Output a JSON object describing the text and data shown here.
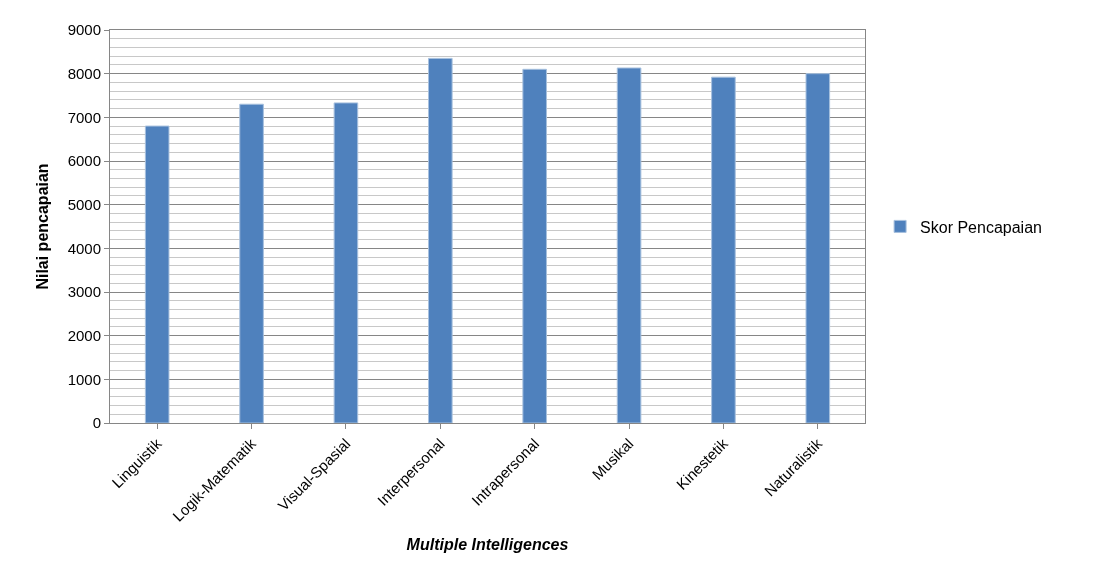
{
  "chart_data": {
    "type": "bar",
    "xlabel": "Multiple Intelligences",
    "ylabel": "Nilai pencapaian",
    "categories": [
      "Linguistik",
      "Logik-Matematik",
      "Visual-Spasial",
      "Interpersonal",
      "Intrapersonal",
      "Musikal",
      "Kinestetik",
      "Naturalistik"
    ],
    "series": [
      {
        "name": "Skor Pencapaian",
        "color": "#4f81bd",
        "values": [
          6800,
          7300,
          7330,
          8350,
          8100,
          8130,
          7920,
          8000
        ]
      }
    ],
    "ylim": [
      0,
      9000
    ],
    "yticks": [
      0,
      1000,
      2000,
      3000,
      4000,
      5000,
      6000,
      7000,
      8000,
      9000
    ],
    "grid": "y",
    "legend": "right"
  }
}
